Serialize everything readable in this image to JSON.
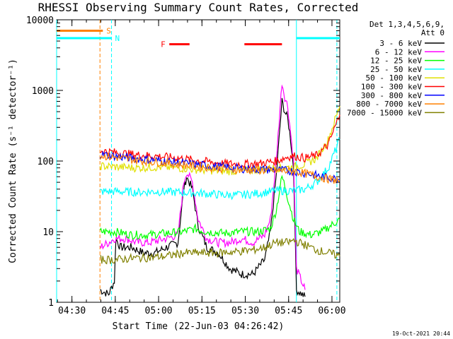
{
  "chart_data": {
    "type": "line",
    "title": "RHESSI Observing Summary Count Rates, Corrected",
    "xlabel": "Start Time (22-Jun-03 04:26:42)",
    "ylabel": "Corrected Count Rate (s⁻¹ detector⁻¹)",
    "y_scale": "log",
    "ylim": [
      1,
      10000
    ],
    "xlim_minutes": [
      -2,
      96
    ],
    "x_tick_labels": [
      "04:30",
      "04:45",
      "05:00",
      "05:15",
      "05:30",
      "05:45",
      "06:00"
    ],
    "x_tick_minutes": [
      3.3,
      18.3,
      33.3,
      48.3,
      63.3,
      78.3,
      93.3
    ],
    "y_tick_labels": [
      "1",
      "10",
      "100",
      "1000",
      "10000"
    ],
    "y_tick_values": [
      1,
      10,
      100,
      1000,
      10000
    ],
    "legend_header": [
      "Det 1,3,4,5,6,9,",
      "Att 0"
    ],
    "timestamp": "19-Oct-2021 20:44",
    "series": [
      {
        "name": "3 - 6 keV",
        "color": "#000000",
        "points": [
          [
            13,
            1.5
          ],
          [
            16,
            1.3
          ],
          [
            18,
            2
          ],
          [
            18.5,
            8
          ],
          [
            20,
            6
          ],
          [
            24,
            6
          ],
          [
            28,
            5
          ],
          [
            32,
            5
          ],
          [
            36,
            6
          ],
          [
            40,
            7
          ],
          [
            42,
            40
          ],
          [
            43,
            60
          ],
          [
            45,
            40
          ],
          [
            47,
            12
          ],
          [
            50,
            6
          ],
          [
            54,
            5
          ],
          [
            58,
            3
          ],
          [
            62,
            2.5
          ],
          [
            66,
            2.5
          ],
          [
            70,
            4
          ],
          [
            72,
            10
          ],
          [
            74,
            60
          ],
          [
            76,
            700
          ],
          [
            77,
            500
          ],
          [
            78,
            400
          ],
          [
            79,
            200
          ],
          [
            80,
            80
          ],
          [
            81,
            1.5
          ],
          [
            84,
            1.2
          ]
        ]
      },
      {
        "name": "6 - 12 keV",
        "color": "#ff00ff",
        "points": [
          [
            13,
            6
          ],
          [
            16,
            7
          ],
          [
            18,
            8
          ],
          [
            22,
            8
          ],
          [
            26,
            7
          ],
          [
            30,
            7
          ],
          [
            36,
            8
          ],
          [
            40,
            9
          ],
          [
            42,
            50
          ],
          [
            43,
            70
          ],
          [
            45,
            50
          ],
          [
            47,
            15
          ],
          [
            50,
            8
          ],
          [
            54,
            7
          ],
          [
            58,
            7
          ],
          [
            62,
            8
          ],
          [
            66,
            7
          ],
          [
            70,
            9
          ],
          [
            72,
            15
          ],
          [
            74,
            100
          ],
          [
            76,
            1300
          ],
          [
            77,
            800
          ],
          [
            78,
            600
          ],
          [
            79,
            250
          ],
          [
            80,
            100
          ],
          [
            81,
            3
          ],
          [
            84,
            1.5
          ]
        ]
      },
      {
        "name": "12 - 25 keV",
        "color": "#00ff00",
        "points": [
          [
            13,
            10
          ],
          [
            18,
            10
          ],
          [
            24,
            9
          ],
          [
            30,
            9
          ],
          [
            36,
            9.5
          ],
          [
            42,
            10
          ],
          [
            46,
            11
          ],
          [
            50,
            10
          ],
          [
            56,
            9.5
          ],
          [
            62,
            10
          ],
          [
            68,
            10
          ],
          [
            72,
            11
          ],
          [
            74,
            20
          ],
          [
            76,
            60
          ],
          [
            77,
            45
          ],
          [
            78,
            30
          ],
          [
            80,
            15
          ],
          [
            82,
            10
          ],
          [
            86,
            9
          ],
          [
            90,
            10
          ],
          [
            96,
            15
          ]
        ]
      },
      {
        "name": "25 - 50 keV",
        "color": "#00ffff",
        "points": [
          [
            13,
            37
          ],
          [
            20,
            37
          ],
          [
            26,
            36
          ],
          [
            32,
            37
          ],
          [
            40,
            36
          ],
          [
            48,
            35
          ],
          [
            56,
            33
          ],
          [
            62,
            33
          ],
          [
            68,
            35
          ],
          [
            74,
            38
          ],
          [
            80,
            38
          ],
          [
            84,
            40
          ],
          [
            88,
            50
          ],
          [
            92,
            80
          ],
          [
            96,
            200
          ]
        ]
      },
      {
        "name": "50 - 100 keV",
        "color": "#e0e000",
        "points": [
          [
            13,
            85
          ],
          [
            20,
            82
          ],
          [
            26,
            80
          ],
          [
            32,
            82
          ],
          [
            40,
            80
          ],
          [
            48,
            75
          ],
          [
            56,
            72
          ],
          [
            62,
            72
          ],
          [
            68,
            76
          ],
          [
            74,
            80
          ],
          [
            80,
            82
          ],
          [
            84,
            90
          ],
          [
            88,
            110
          ],
          [
            92,
            200
          ],
          [
            96,
            600
          ]
        ]
      },
      {
        "name": "100 - 300 keV",
        "color": "#ff0000",
        "points": [
          [
            13,
            140
          ],
          [
            20,
            130
          ],
          [
            26,
            122
          ],
          [
            32,
            118
          ],
          [
            40,
            110
          ],
          [
            48,
            100
          ],
          [
            56,
            92
          ],
          [
            62,
            90
          ],
          [
            68,
            92
          ],
          [
            74,
            100
          ],
          [
            78,
            115
          ],
          [
            80,
            118
          ],
          [
            84,
            110
          ],
          [
            88,
            120
          ],
          [
            92,
            170
          ],
          [
            96,
            450
          ]
        ]
      },
      {
        "name": "300 - 800 keV",
        "color": "#0000ff",
        "points": [
          [
            13,
            125
          ],
          [
            20,
            115
          ],
          [
            26,
            108
          ],
          [
            32,
            103
          ],
          [
            40,
            95
          ],
          [
            48,
            88
          ],
          [
            56,
            82
          ],
          [
            62,
            78
          ],
          [
            68,
            76
          ],
          [
            74,
            75
          ],
          [
            80,
            72
          ],
          [
            86,
            65
          ],
          [
            90,
            60
          ],
          [
            96,
            55
          ]
        ]
      },
      {
        "name": "800 - 7000 keV",
        "color": "#ff8000",
        "points": [
          [
            13,
            120
          ],
          [
            20,
            110
          ],
          [
            26,
            102
          ],
          [
            32,
            97
          ],
          [
            40,
            90
          ],
          [
            48,
            83
          ],
          [
            56,
            78
          ],
          [
            62,
            75
          ],
          [
            68,
            74
          ],
          [
            74,
            73
          ],
          [
            80,
            72
          ],
          [
            86,
            64
          ],
          [
            90,
            58
          ],
          [
            96,
            52
          ]
        ]
      },
      {
        "name": "7000 - 15000 keV",
        "color": "#808000",
        "points": [
          [
            13,
            4
          ],
          [
            18,
            4
          ],
          [
            24,
            4.2
          ],
          [
            30,
            4.3
          ],
          [
            36,
            4.5
          ],
          [
            42,
            5
          ],
          [
            48,
            5
          ],
          [
            54,
            5
          ],
          [
            60,
            5.2
          ],
          [
            66,
            5.5
          ],
          [
            70,
            6
          ],
          [
            74,
            7
          ],
          [
            78,
            7
          ],
          [
            80,
            7.5
          ],
          [
            84,
            6.5
          ],
          [
            88,
            5.5
          ],
          [
            92,
            5
          ],
          [
            96,
            4.5
          ]
        ]
      }
    ],
    "state_bars": [
      {
        "label": "S",
        "color": "#ff8000",
        "start": -2,
        "end": 14,
        "value": 7000
      },
      {
        "label": "N",
        "color": "#00ffff",
        "start": -2,
        "end": 17,
        "value": 5500
      },
      {
        "label": "",
        "color": "#00ffff",
        "start": 81,
        "end": 96,
        "value": 5500
      },
      {
        "label": "F",
        "color": "#ff0000",
        "start": 37,
        "end": 44,
        "value": 4500
      },
      {
        "label": "",
        "color": "#ff0000",
        "start": 63,
        "end": 76,
        "value": 4500
      }
    ],
    "vertical_markers": [
      {
        "x": -2,
        "color": "#00ffff",
        "style": "solid"
      },
      {
        "x": 13,
        "color": "#ff8000",
        "style": "dashed"
      },
      {
        "x": 17,
        "color": "#00ffff",
        "style": "dashed"
      },
      {
        "x": 81,
        "color": "#00ffff",
        "style": "solid"
      },
      {
        "x": 95,
        "color": "#00ffff",
        "style": "dashed"
      }
    ]
  }
}
